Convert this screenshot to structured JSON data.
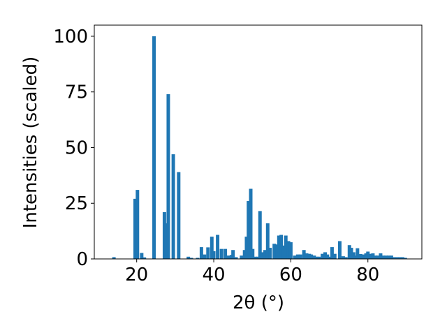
{
  "chart_data": {
    "type": "bar",
    "xlabel": "2θ (°)",
    "ylabel": "Intensities (scaled)",
    "color": "#1f77b4",
    "x": [
      14.1,
      19.6,
      20.2,
      21.3,
      22.0,
      24.5,
      27.2,
      27.7,
      28.2,
      29.5,
      30.9,
      33.4,
      34.2,
      35.8,
      36.8,
      37.6,
      38.5,
      39.5,
      40.0,
      41.0,
      42.0,
      43.0,
      43.8,
      44.6,
      45.0,
      45.8,
      47.2,
      48.0,
      48.5,
      49.0,
      49.6,
      50.1,
      50.8,
      51.4,
      52.0,
      52.6,
      53.3,
      54.0,
      54.6,
      55.7,
      56.4,
      56.9,
      57.5,
      58.0,
      58.7,
      59.4,
      60.0,
      61.0,
      61.8,
      62.5,
      63.4,
      64.1,
      64.8,
      65.3,
      66.1,
      66.8,
      67.3,
      68.2,
      68.9,
      69.5,
      70.2,
      70.7,
      71.4,
      72.7,
      73.6,
      74.3,
      75.2,
      75.7,
      76.3,
      76.8,
      77.3,
      78.1,
      78.8,
      79.5,
      80.0,
      80.7,
      81.3,
      82.0,
      82.5,
      83.3,
      84.0,
      84.7,
      85.4,
      86.1,
      86.8,
      87.6,
      88.3,
      89.0,
      89.7
    ],
    "values": [
      0.8,
      27,
      31,
      2.7,
      0.7,
      100,
      21,
      16,
      74,
      47,
      39,
      1,
      0.5,
      0.5,
      5.3,
      2,
      5.2,
      10,
      3.5,
      10.8,
      4.5,
      4.5,
      1.5,
      1.8,
      4,
      0.8,
      1.5,
      4,
      10,
      26,
      31.5,
      4.5,
      1,
      1,
      21.5,
      3,
      4,
      16,
      5,
      6.8,
      6.5,
      10.5,
      10.8,
      6,
      10.5,
      8,
      7.5,
      1.5,
      2,
      2,
      4,
      2.5,
      2.3,
      2,
      1.5,
      1,
      1,
      2.3,
      3,
      2,
      1,
      5.3,
      2.3,
      8,
      1.2,
      0.8,
      6.2,
      5,
      3,
      1.5,
      4.8,
      2.2,
      2,
      2.5,
      3.3,
      2.3,
      2.5,
      1.5,
      1.5,
      2.5,
      1.5,
      1.5,
      1.5,
      1.5,
      0.8,
      0.8,
      0.8,
      0.8,
      0.5
    ],
    "xlim": [
      9,
      94
    ],
    "ylim": [
      0,
      105
    ],
    "xticks": [
      20,
      40,
      60,
      80
    ],
    "yticks": [
      0,
      25,
      50,
      75,
      100
    ]
  }
}
